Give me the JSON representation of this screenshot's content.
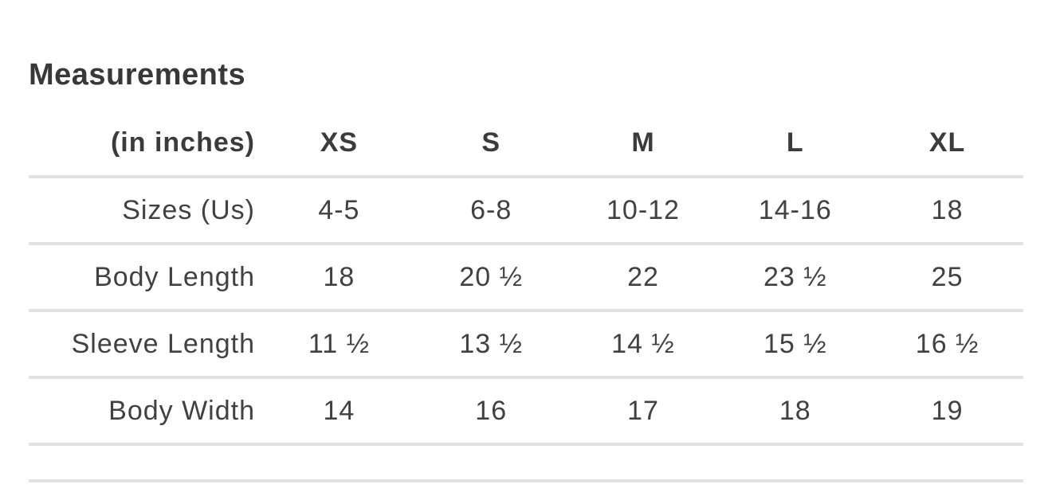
{
  "header": {
    "title": "Measurements"
  },
  "chart_data": {
    "type": "table",
    "title": "Measurements",
    "units_label": "(in inches)",
    "columns": [
      "XS",
      "S",
      "M",
      "L",
      "XL"
    ],
    "rows": [
      {
        "label": "Sizes (Us)",
        "values": [
          "4-5",
          "6-8",
          "10-12",
          "14-16",
          "18"
        ]
      },
      {
        "label": "Body Length",
        "values": [
          "18",
          "20 ½",
          "22",
          "23 ½",
          "25"
        ]
      },
      {
        "label": "Sleeve Length",
        "values": [
          "11 ½",
          "13 ½",
          "14 ½",
          "15 ½",
          "16 ½"
        ]
      },
      {
        "label": "Body Width",
        "values": [
          "14",
          "16",
          "17",
          "18",
          "19"
        ]
      }
    ]
  },
  "colors": {
    "heading_text": "#383838",
    "body_text": "#414141",
    "divider": "#e1e1e5",
    "background": "#ffffff"
  }
}
